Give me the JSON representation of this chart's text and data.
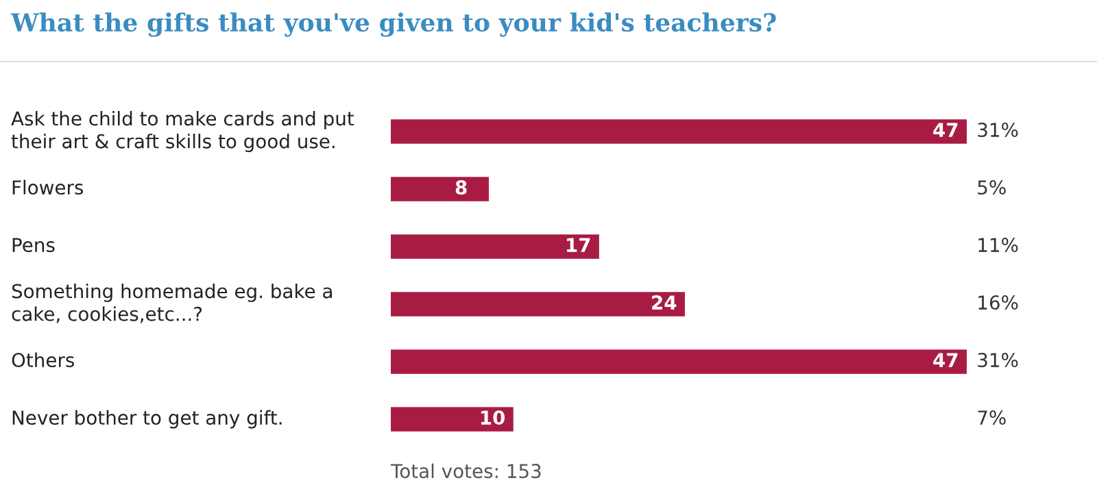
{
  "chart_data": {
    "type": "bar",
    "orientation": "horizontal",
    "title": "What the gifts that you've given to your kid's teachers?",
    "categories": [
      "Ask the child to make cards and put their art & craft skills to good use.",
      "Flowers",
      "Pens",
      "Something homemade eg. bake a cake, cookies,etc...?",
      "Others",
      "Never bother to get any gift."
    ],
    "values": [
      47,
      8,
      17,
      24,
      47,
      10
    ],
    "color": "#a81c44",
    "xlim": [
      0,
      47
    ],
    "tick_labels": "y",
    "data_labels": true,
    "annotations": [
      "31%",
      "5%",
      "11%",
      "16%",
      "31%",
      "7%",
      "Total votes: 153"
    ]
  }
}
